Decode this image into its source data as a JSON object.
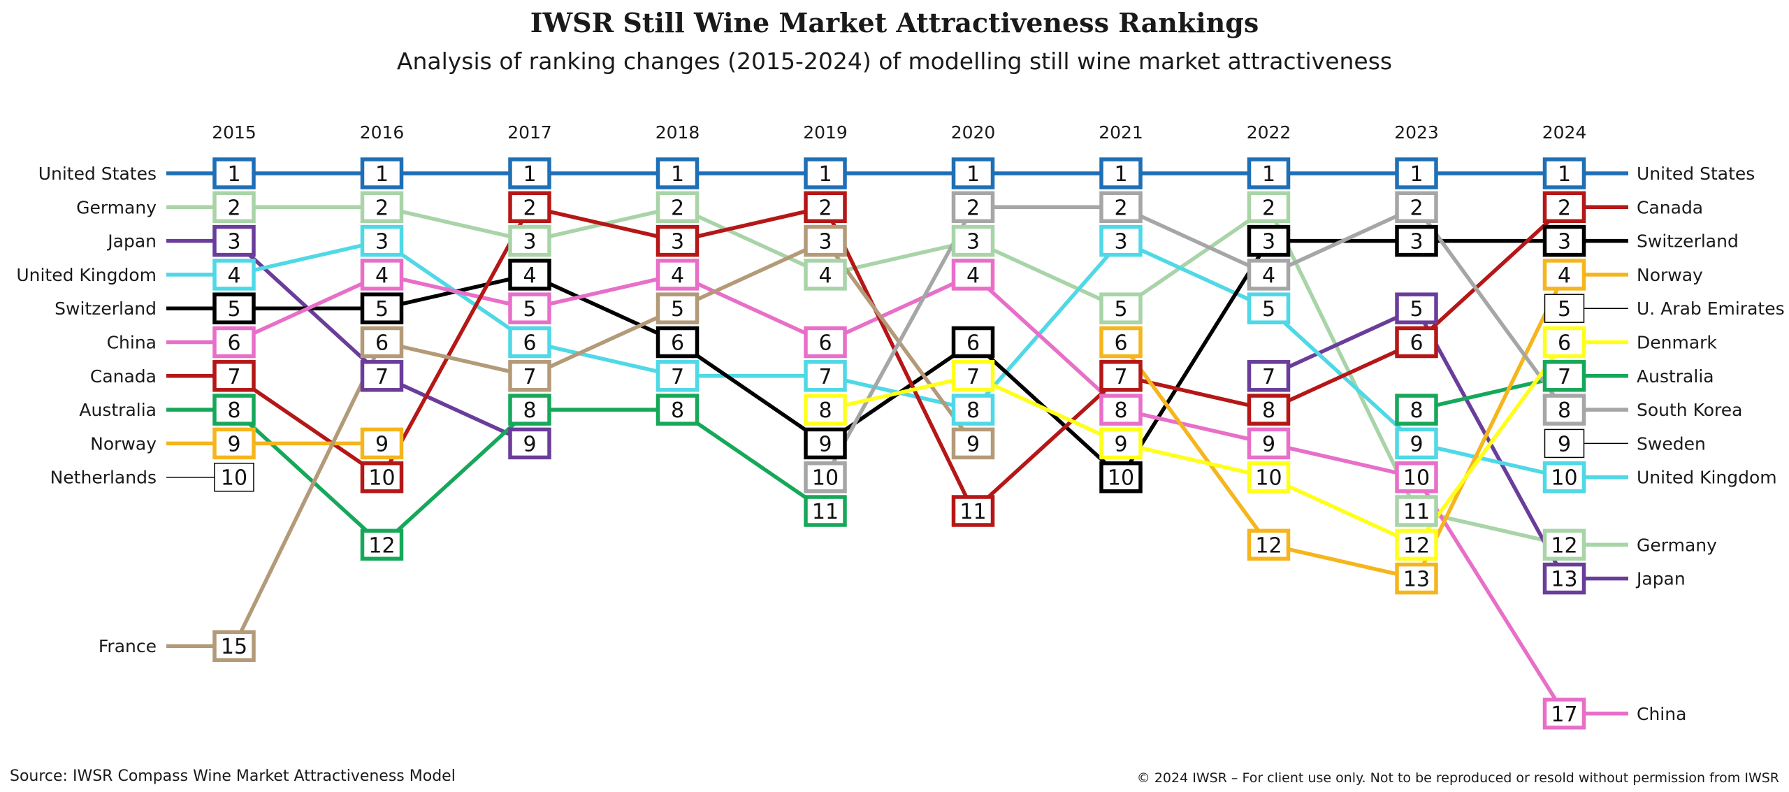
{
  "title": "IWSR Still Wine Market Attractiveness Rankings",
  "subtitle": "Analysis of ranking changes (2015-2024) of modelling still wine market attractiveness",
  "footer": {
    "source": "Source: IWSR Compass Wine Market Attractiveness Model",
    "copyright": "© 2024 IWSR – For client use only. Not to be reproduced or resold without permission from IWSR"
  },
  "chart_data": {
    "type": "line",
    "subtype": "bump",
    "x": [
      "2015",
      "2016",
      "2017",
      "2018",
      "2019",
      "2020",
      "2021",
      "2022",
      "2023",
      "2024"
    ],
    "y_axis": "rank (1 at top)",
    "series": [
      {
        "name": "United States",
        "color": "#1f6fb5",
        "ranks": [
          1,
          1,
          1,
          1,
          1,
          1,
          1,
          1,
          1,
          1
        ],
        "left_label": "United States",
        "right_label": "United States"
      },
      {
        "name": "Germany",
        "color": "#a8d4a8",
        "ranks": [
          2,
          2,
          3,
          2,
          4,
          3,
          5,
          2,
          11,
          12
        ],
        "left_label": "Germany",
        "right_label": "Germany"
      },
      {
        "name": "Japan",
        "color": "#6a3d9a",
        "ranks": [
          3,
          7,
          9,
          null,
          null,
          null,
          null,
          7,
          5,
          13
        ],
        "left_label": "Japan",
        "right_label": "Japan"
      },
      {
        "name": "United Kingdom",
        "color": "#4fd8e6",
        "ranks": [
          4,
          3,
          6,
          7,
          7,
          8,
          3,
          5,
          9,
          10
        ],
        "left_label": "United Kingdom",
        "right_label": "United Kingdom"
      },
      {
        "name": "Switzerland",
        "color": "#000000",
        "ranks": [
          5,
          5,
          4,
          6,
          9,
          6,
          10,
          3,
          3,
          3
        ],
        "left_label": "Switzerland",
        "right_label": "Switzerland"
      },
      {
        "name": "China",
        "color": "#e86fc8",
        "ranks": [
          6,
          4,
          5,
          4,
          6,
          4,
          8,
          9,
          10,
          17
        ],
        "left_label": "China",
        "right_label": "China"
      },
      {
        "name": "Canada",
        "color": "#b51717",
        "ranks": [
          7,
          10,
          2,
          3,
          2,
          11,
          7,
          8,
          6,
          2
        ],
        "left_label": "Canada",
        "right_label": "Canada"
      },
      {
        "name": "Australia",
        "color": "#16a85a",
        "ranks": [
          8,
          12,
          8,
          8,
          11,
          null,
          null,
          null,
          8,
          7
        ],
        "left_label": "Australia",
        "right_label": "Australia"
      },
      {
        "name": "Norway",
        "color": "#f5b51c",
        "ranks": [
          9,
          9,
          null,
          null,
          null,
          null,
          6,
          12,
          13,
          4
        ],
        "left_label": "Norway",
        "right_label": "Norway"
      },
      {
        "name": "Netherlands",
        "color": "#000000",
        "ranks": [
          10,
          null,
          null,
          null,
          null,
          null,
          null,
          null,
          null,
          null
        ],
        "thin": true,
        "left_label": "Netherlands",
        "right_label": ""
      },
      {
        "name": "France",
        "color": "#b39a78",
        "ranks": [
          15,
          6,
          7,
          5,
          3,
          9,
          null,
          null,
          null,
          null
        ],
        "left_label": "France",
        "right_label": ""
      },
      {
        "name": "South Korea",
        "color": "#a6a6a6",
        "ranks": [
          null,
          null,
          null,
          null,
          10,
          2,
          2,
          4,
          2,
          8
        ],
        "left_label": "",
        "right_label": "South Korea"
      },
      {
        "name": "Denmark",
        "color": "#ffff1a",
        "ranks": [
          null,
          null,
          null,
          null,
          8,
          7,
          9,
          10,
          12,
          6
        ],
        "left_label": "",
        "right_label": "Denmark"
      },
      {
        "name": "U. Arab Emirates",
        "color": "#000000",
        "ranks": [
          null,
          null,
          null,
          null,
          null,
          null,
          null,
          null,
          null,
          5
        ],
        "thin": true,
        "left_label": "",
        "right_label": "U. Arab Emirates"
      },
      {
        "name": "Sweden",
        "color": "#000000",
        "ranks": [
          null,
          null,
          null,
          null,
          null,
          null,
          null,
          null,
          null,
          9
        ],
        "thin": true,
        "left_label": "",
        "right_label": "Sweden"
      }
    ]
  }
}
